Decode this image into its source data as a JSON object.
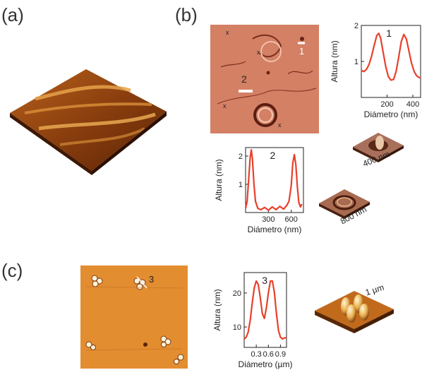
{
  "panel_labels": {
    "a": "(a)",
    "b": "(b)",
    "c": "(c)"
  },
  "colors": {
    "curve": "#e8402a",
    "axis": "#222222"
  },
  "afm_images": {
    "b_markers": {
      "m1": "1",
      "m2": "2",
      "x": "x"
    },
    "c_marker": "3"
  },
  "insets_3d": {
    "b1_scale": "400 nm",
    "b2_scale": "800 nm",
    "c_scale": "1 µm"
  },
  "chart_data": [
    {
      "id": "profile-1",
      "type": "line",
      "label": "1",
      "xlabel": "Diámetro (nm)",
      "ylabel": "Altura (nm)",
      "xlim": [
        0,
        460
      ],
      "ylim": [
        0,
        2
      ],
      "xticks": [
        200,
        400
      ],
      "yticks": [
        1,
        2
      ],
      "x": [
        0,
        20,
        40,
        60,
        80,
        100,
        120,
        135,
        150,
        170,
        190,
        210,
        230,
        250,
        270,
        290,
        310,
        330,
        350,
        370,
        390,
        410,
        430,
        450,
        460
      ],
      "y": [
        0.75,
        0.72,
        0.78,
        0.92,
        1.15,
        1.45,
        1.72,
        1.78,
        1.65,
        1.25,
        0.85,
        0.58,
        0.48,
        0.5,
        0.72,
        1.12,
        1.55,
        1.75,
        1.62,
        1.28,
        0.95,
        0.72,
        0.6,
        0.55,
        0.55
      ]
    },
    {
      "id": "profile-2",
      "type": "line",
      "label": "2",
      "xlabel": "Diámetro (nm)",
      "ylabel": "Altura (nm)",
      "xlim": [
        0,
        760
      ],
      "ylim": [
        0,
        2.3
      ],
      "xticks": [
        300,
        600
      ],
      "yticks": [
        1,
        2
      ],
      "x": [
        0,
        20,
        40,
        60,
        75,
        90,
        110,
        130,
        160,
        200,
        250,
        300,
        350,
        400,
        450,
        500,
        540,
        570,
        600,
        620,
        640,
        660,
        680,
        700,
        720,
        740
      ],
      "y": [
        0.15,
        0.4,
        1.15,
        1.95,
        2.22,
        1.9,
        1.0,
        0.4,
        0.15,
        0.1,
        0.18,
        0.08,
        0.2,
        0.1,
        0.22,
        0.12,
        0.25,
        0.4,
        0.95,
        1.75,
        2.05,
        1.7,
        0.9,
        0.35,
        0.2,
        0.3
      ]
    },
    {
      "id": "profile-3",
      "type": "line",
      "label": "3",
      "xlabel": "Diámetro (µm)",
      "ylabel": "Altura (nm)",
      "xlim": [
        0,
        1.05
      ],
      "ylim": [
        4,
        26
      ],
      "xticks": [
        0.3,
        0.6,
        0.9
      ],
      "xticklabels": [
        "0.3",
        "0.6",
        "0.9"
      ],
      "yticks": [
        10,
        20
      ],
      "x": [
        0,
        0.05,
        0.1,
        0.15,
        0.2,
        0.25,
        0.3,
        0.35,
        0.4,
        0.45,
        0.5,
        0.55,
        0.6,
        0.65,
        0.7,
        0.75,
        0.8,
        0.85,
        0.9,
        0.95,
        1.0,
        1.05
      ],
      "y": [
        6.5,
        7,
        8.5,
        12,
        17,
        21.5,
        23.5,
        22.5,
        18.5,
        14,
        12.5,
        15.5,
        20,
        23.5,
        23.5,
        20,
        14,
        9,
        7,
        6.5,
        6.8,
        6.8
      ]
    }
  ]
}
